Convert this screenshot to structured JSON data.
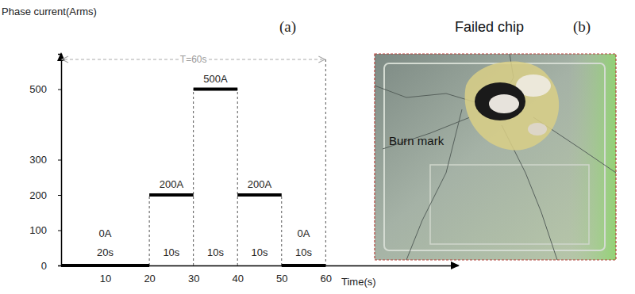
{
  "chart_data": {
    "type": "step",
    "x_label": "Time(s)",
    "y_label": "Phase current(Arms)",
    "xlim": [
      0,
      90
    ],
    "xticks": [
      10,
      20,
      30,
      40,
      50,
      60
    ],
    "ylim": [
      0,
      600
    ],
    "yticks": [
      0,
      100,
      200,
      300,
      500
    ],
    "data_labels": true,
    "series": [
      {
        "x": [
          0,
          20,
          30,
          40,
          50
        ],
        "values": [
          0,
          200,
          500,
          200,
          0
        ],
        "value_labels": [
          "0A",
          "200A",
          "500A",
          "200A",
          "0A"
        ],
        "durations": [
          20,
          10,
          10,
          10,
          10
        ],
        "duration_labels": [
          "20s",
          "10s",
          "10s",
          "10s",
          "10s"
        ],
        "color": "#000000"
      }
    ],
    "annotations": [
      {
        "text": "T=60s",
        "x": [
          0,
          60
        ]
      }
    ]
  },
  "panel_labels": [
    "(a)",
    "(b)"
  ],
  "photo": {
    "title": "Failed chip",
    "annotation": "Burn mark"
  }
}
